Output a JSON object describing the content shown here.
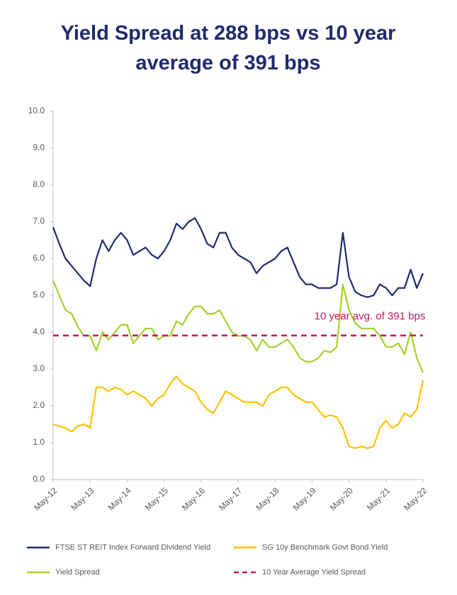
{
  "chart_data": {
    "type": "line",
    "title": "Yield Spread at 288 bps vs 10 year average of 391 bps",
    "categories": [
      "May-12",
      null,
      null,
      null,
      null,
      null,
      "May-13",
      null,
      null,
      null,
      null,
      null,
      "May-14",
      null,
      null,
      null,
      null,
      null,
      "May-15",
      null,
      null,
      null,
      null,
      null,
      "May-16",
      null,
      null,
      null,
      null,
      null,
      "May-17",
      null,
      null,
      null,
      null,
      null,
      "May-18",
      null,
      null,
      null,
      null,
      null,
      "May-19",
      null,
      null,
      null,
      null,
      null,
      "May-20",
      null,
      null,
      null,
      null,
      null,
      "May-21",
      null,
      null,
      null,
      null,
      null,
      "May-22"
    ],
    "series": [
      {
        "name": "FTSE ST REIT Index Forward Dividend Yield",
        "color": "#1f2a6e",
        "values": [
          6.85,
          6.4,
          6.0,
          5.8,
          5.6,
          5.4,
          5.25,
          6.0,
          6.5,
          6.2,
          6.5,
          6.7,
          6.5,
          6.1,
          6.2,
          6.3,
          6.1,
          6.0,
          6.2,
          6.5,
          6.95,
          6.8,
          7.0,
          7.1,
          6.8,
          6.4,
          6.3,
          6.7,
          6.7,
          6.3,
          6.1,
          6.0,
          5.9,
          5.6,
          5.8,
          5.9,
          6.0,
          6.2,
          6.3,
          5.9,
          5.5,
          5.3,
          5.3,
          5.2,
          5.2,
          5.2,
          5.3,
          6.7,
          5.5,
          5.1,
          5.0,
          4.95,
          5.0,
          5.3,
          5.2,
          5.0,
          5.2,
          5.2,
          5.7,
          5.2,
          5.6
        ]
      },
      {
        "name": "SG 10y Benchmark Govt Bond Yield",
        "color": "#ffc000",
        "values": [
          1.5,
          1.45,
          1.4,
          1.3,
          1.45,
          1.5,
          1.4,
          2.5,
          2.5,
          2.4,
          2.5,
          2.45,
          2.3,
          2.4,
          2.3,
          2.2,
          2.0,
          2.2,
          2.3,
          2.6,
          2.8,
          2.6,
          2.5,
          2.4,
          2.1,
          1.9,
          1.8,
          2.1,
          2.4,
          2.3,
          2.2,
          2.1,
          2.1,
          2.1,
          2.0,
          2.3,
          2.4,
          2.5,
          2.5,
          2.3,
          2.2,
          2.1,
          2.1,
          1.9,
          1.7,
          1.75,
          1.7,
          1.4,
          0.9,
          0.85,
          0.9,
          0.85,
          0.9,
          1.4,
          1.6,
          1.4,
          1.5,
          1.8,
          1.7,
          1.9,
          2.7
        ]
      },
      {
        "name": "Yield Spread",
        "color": "#a6d12a",
        "values": [
          5.4,
          5.0,
          4.6,
          4.5,
          4.15,
          3.9,
          3.9,
          3.5,
          4.0,
          3.8,
          4.0,
          4.2,
          4.2,
          3.7,
          3.9,
          4.1,
          4.1,
          3.8,
          3.9,
          3.9,
          4.3,
          4.2,
          4.5,
          4.7,
          4.7,
          4.5,
          4.5,
          4.6,
          4.3,
          4.0,
          3.9,
          3.9,
          3.8,
          3.5,
          3.8,
          3.6,
          3.6,
          3.7,
          3.8,
          3.6,
          3.3,
          3.2,
          3.2,
          3.3,
          3.5,
          3.45,
          3.6,
          5.3,
          4.6,
          4.25,
          4.1,
          4.1,
          4.1,
          3.9,
          3.6,
          3.6,
          3.7,
          3.4,
          4.0,
          3.3,
          2.9
        ]
      }
    ],
    "reference_line": {
      "name": "10 Year Average Yield Spread",
      "label": "10 year avg. of 391 bps",
      "value": 3.91,
      "color": "#c0185b"
    },
    "ylim": [
      0,
      10
    ],
    "yticks": [
      {
        "value": 0,
        "label": "0.0"
      },
      {
        "value": 1,
        "label": "1.0"
      },
      {
        "value": 2,
        "label": "2.0"
      },
      {
        "value": 3,
        "label": "3.0"
      },
      {
        "value": 4,
        "label": "4.0"
      },
      {
        "value": 5,
        "label": "5.0"
      },
      {
        "value": 6,
        "label": "6.0"
      },
      {
        "value": 7,
        "label": "7.0"
      },
      {
        "value": 8,
        "label": "8.0"
      },
      {
        "value": 9,
        "label": "9.0"
      },
      {
        "value": 10,
        "label": "10.0"
      }
    ],
    "grid": false
  }
}
